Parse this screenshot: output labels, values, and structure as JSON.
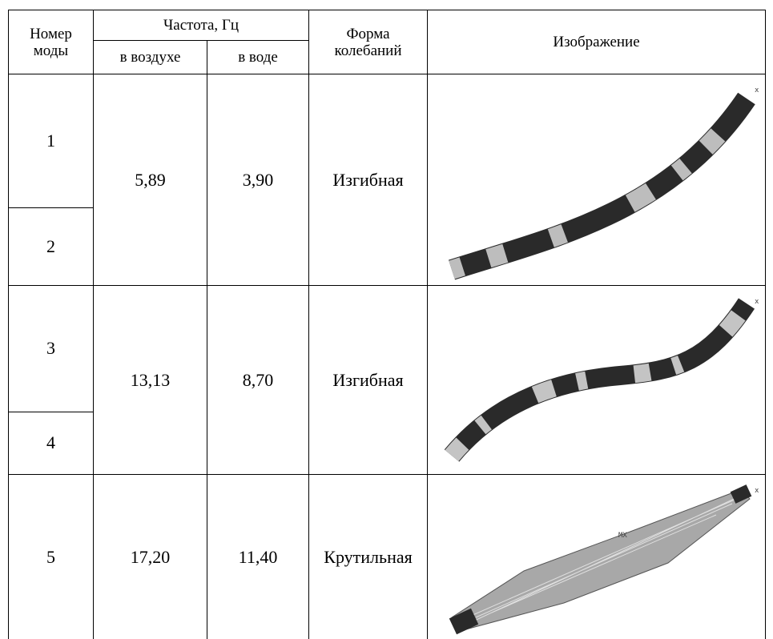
{
  "header": {
    "mode_number": "Номер моды",
    "frequency": "Частота, Гц",
    "in_air": "в воздухе",
    "in_water": "в воде",
    "shape": "Форма колебаний",
    "image": "Изображение"
  },
  "rows": [
    {
      "modes": [
        1,
        2
      ],
      "in_air": "5,89",
      "in_water": "3,90",
      "shape": "Изгибная",
      "image_labels": [
        "x"
      ]
    },
    {
      "modes": [
        3,
        4
      ],
      "in_air": "13,13",
      "in_water": "8,70",
      "shape": "Изгибная",
      "image_labels": [
        "x"
      ]
    },
    {
      "modes": [
        5
      ],
      "in_air": "17,20",
      "in_water": "11,40",
      "shape": "Крутильная",
      "image_labels": [
        "x",
        "MX"
      ]
    }
  ]
}
